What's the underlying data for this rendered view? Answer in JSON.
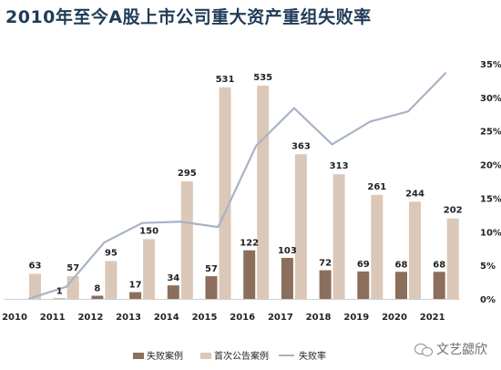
{
  "title": "2010年至今A股上市公司重大资产重组失败率",
  "watermark": "文艺勰欣",
  "colors": {
    "fail": "#8c6e5c",
    "first": "#dcc8b8",
    "rate": "#a9b3c6",
    "title": "#1f3b57",
    "text": "#222222",
    "axis": "#555555"
  },
  "chart_data": {
    "type": "bar",
    "categories": [
      "2010",
      "2011",
      "2012",
      "2013",
      "2014",
      "2015",
      "2016",
      "2017",
      "2018",
      "2019",
      "2020",
      "2021"
    ],
    "series": [
      {
        "name": "失败案例",
        "type": "bar",
        "values": [
          null,
          1,
          8,
          17,
          34,
          57,
          122,
          103,
          72,
          69,
          68,
          68
        ],
        "labels": [
          "",
          "1",
          "8",
          "17",
          "34",
          "57",
          "122",
          "103",
          "72",
          "69",
          "68",
          "68"
        ]
      },
      {
        "name": "首次公告案例",
        "type": "bar",
        "values": [
          63,
          57,
          95,
          150,
          295,
          531,
          535,
          363,
          313,
          261,
          244,
          202
        ]
      },
      {
        "name": "失败率",
        "type": "line",
        "axis": "right",
        "values": [
          0.0,
          1.8,
          8.4,
          11.3,
          11.5,
          10.7,
          22.8,
          28.4,
          23.0,
          26.4,
          27.9,
          33.7
        ]
      }
    ],
    "ylim_left": [
      0,
      590
    ],
    "ylim_right": [
      0,
      35
    ],
    "right_ticks": [
      "0%",
      "5%",
      "10%",
      "15%",
      "20%",
      "25%",
      "30%",
      "35%"
    ],
    "right_tick_values": [
      0,
      5,
      10,
      15,
      20,
      25,
      30,
      35
    ],
    "legend": [
      "失败案例",
      "首次公告案例",
      "失败率"
    ],
    "legend_position": "bottom",
    "grid": false
  }
}
